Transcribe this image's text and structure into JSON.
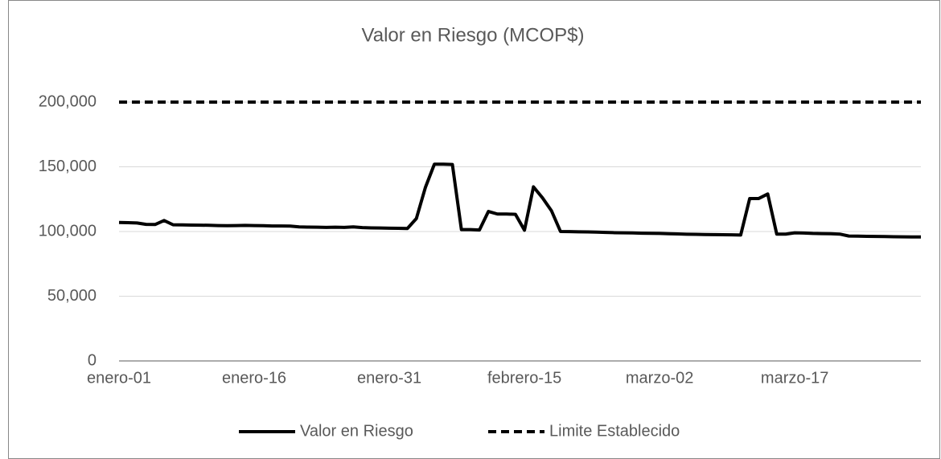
{
  "chart_data": {
    "type": "line",
    "title": "Valor en Riesgo (MCOP$)",
    "categories": [
      "enero-01",
      null,
      null,
      null,
      null,
      null,
      null,
      null,
      null,
      null,
      null,
      null,
      null,
      null,
      null,
      "enero-16",
      null,
      null,
      null,
      null,
      null,
      null,
      null,
      null,
      null,
      null,
      null,
      null,
      null,
      null,
      "enero-31",
      null,
      null,
      null,
      null,
      null,
      null,
      null,
      null,
      null,
      null,
      null,
      null,
      null,
      null,
      "febrero-15",
      null,
      null,
      null,
      null,
      null,
      null,
      null,
      null,
      null,
      null,
      null,
      null,
      null,
      null,
      "marzo-02",
      null,
      null,
      null,
      null,
      null,
      null,
      null,
      null,
      null,
      null,
      null,
      null,
      null,
      null,
      "marzo-17",
      null,
      null,
      null,
      null,
      null,
      null,
      null,
      null,
      null,
      null,
      null,
      null,
      null,
      null
    ],
    "series": [
      {
        "name": "Valor en Riesgo",
        "color": "#000000",
        "line_style": "solid",
        "values": [
          107000,
          106800,
          106600,
          105500,
          105400,
          108500,
          105200,
          105100,
          105000,
          104900,
          104800,
          104600,
          104500,
          104600,
          104700,
          104600,
          104500,
          104300,
          104300,
          104200,
          103600,
          103400,
          103300,
          103200,
          103300,
          103200,
          103600,
          103000,
          102800,
          102700,
          102600,
          102500,
          102300,
          110000,
          134000,
          152000,
          152000,
          151800,
          101500,
          101500,
          101200,
          115500,
          113500,
          113500,
          113300,
          101000,
          134500,
          126000,
          116000,
          100000,
          99900,
          99800,
          99700,
          99500,
          99300,
          99100,
          99000,
          98900,
          98700,
          98600,
          98500,
          98300,
          98100,
          97900,
          97800,
          97700,
          97600,
          97500,
          97400,
          97300,
          125500,
          125500,
          129000,
          98000,
          98000,
          99000,
          98800,
          98500,
          98400,
          98300,
          98000,
          96500,
          96400,
          96300,
          96200,
          96100,
          96000,
          95900,
          95800,
          95800
        ]
      },
      {
        "name": "Limite Establecido",
        "color": "#000000",
        "line_style": "dashed",
        "values": [
          200000,
          200000,
          200000,
          200000,
          200000,
          200000,
          200000,
          200000,
          200000,
          200000,
          200000,
          200000,
          200000,
          200000,
          200000,
          200000,
          200000,
          200000,
          200000,
          200000,
          200000,
          200000,
          200000,
          200000,
          200000,
          200000,
          200000,
          200000,
          200000,
          200000,
          200000,
          200000,
          200000,
          200000,
          200000,
          200000,
          200000,
          200000,
          200000,
          200000,
          200000,
          200000,
          200000,
          200000,
          200000,
          200000,
          200000,
          200000,
          200000,
          200000,
          200000,
          200000,
          200000,
          200000,
          200000,
          200000,
          200000,
          200000,
          200000,
          200000,
          200000,
          200000,
          200000,
          200000,
          200000,
          200000,
          200000,
          200000,
          200000,
          200000,
          200000,
          200000,
          200000,
          200000,
          200000,
          200000,
          200000,
          200000,
          200000,
          200000,
          200000,
          200000,
          200000,
          200000,
          200000,
          200000,
          200000,
          200000,
          200000,
          200000
        ]
      }
    ],
    "ylim": [
      0,
      200000
    ],
    "yticks": [
      0,
      {
        "value": 50000,
        "label": "50,000"
      },
      {
        "value": 100000,
        "label": "100,000"
      },
      {
        "value": 150000,
        "label": "150,000"
      },
      {
        "value": 200000,
        "label": "200,000"
      }
    ],
    "grid": true,
    "legend": "bottom"
  }
}
